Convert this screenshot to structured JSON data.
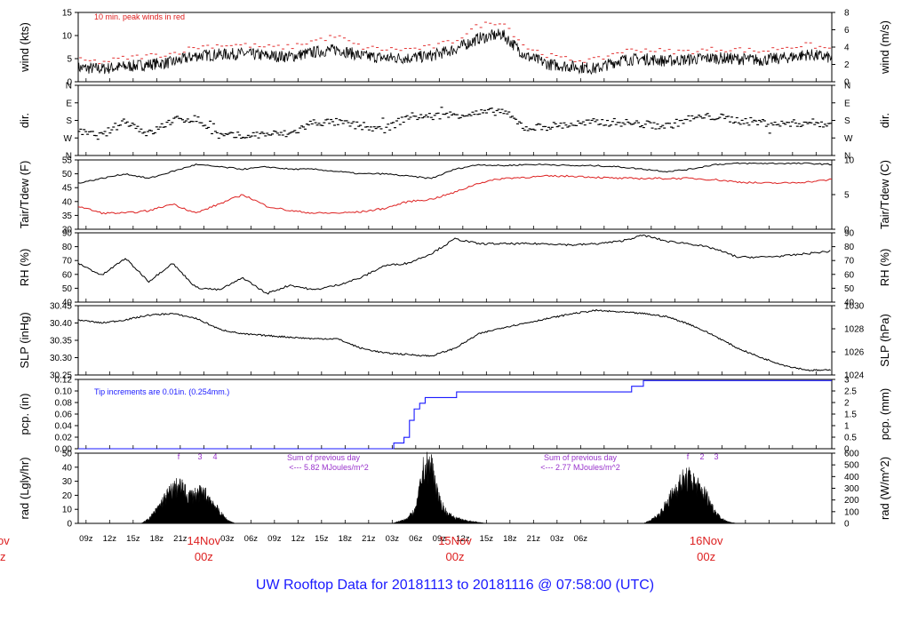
{
  "title": "UW Rooftop Data for 20181113  to  20181116 @ 07:58:00  (UTC)",
  "colors": {
    "black": "#000000",
    "red": "#dd2020",
    "blue": "#1a1aff",
    "purple": "#9933cc",
    "peaks": "#e23030"
  },
  "time_axis": {
    "hour_ticks": [
      "09z",
      "12z",
      "15z",
      "18z",
      "21z",
      "03z",
      "06z",
      "09z",
      "12z",
      "15z",
      "18z",
      "21z",
      "03z",
      "06z",
      "09z",
      "12z",
      "15z",
      "18z",
      "21z",
      "03z",
      "06z"
    ],
    "date_labels": [
      {
        "date": "14Nov",
        "hour": "00z"
      },
      {
        "date": "15Nov",
        "hour": "00z"
      },
      {
        "date": "16Nov",
        "hour": "00z"
      }
    ],
    "left_cut": {
      "date": "ov",
      "hour": "z"
    }
  },
  "chart_data": [
    {
      "type": "line",
      "panel": "wind",
      "ylabel_left": "wind (kts)",
      "ylabel_right": "wind (m/s)",
      "yticks_left": [
        "0",
        "5",
        "10",
        "15"
      ],
      "yticks_right": [
        "0",
        "2",
        "4",
        "6",
        "8"
      ],
      "ylim": [
        0,
        16
      ],
      "annotation": "10 min. peak winds in red",
      "series_desc": "sustained winds (black) with 10-min peaks (red dashes)",
      "x_hours": [
        0,
        3,
        6,
        9,
        12,
        15,
        18,
        21,
        24,
        27,
        30,
        33,
        36,
        39,
        42,
        45,
        48,
        51,
        54,
        57,
        60,
        63,
        66,
        69,
        72,
        75,
        78,
        81,
        84,
        87,
        90,
        93,
        96
      ],
      "values": [
        3.2,
        3,
        3.5,
        4,
        4.5,
        6,
        6.3,
        6.5,
        6,
        5.8,
        6.8,
        7.5,
        6,
        5.5,
        5.5,
        6,
        7.5,
        10,
        11,
        6,
        4,
        3.5,
        3,
        5,
        5.3,
        4.8,
        5.2,
        5.5,
        5.3,
        5,
        5.5,
        6.3,
        5.5
      ],
      "peaks": [
        5,
        4.5,
        5.5,
        6,
        6.5,
        8,
        8.5,
        8.5,
        8,
        8,
        9.5,
        10.5,
        8,
        7.5,
        7.5,
        8,
        9.5,
        13,
        14,
        8,
        6,
        5,
        5,
        7,
        7.5,
        7,
        7,
        7.5,
        7.5,
        7,
        8,
        8.5,
        7.5
      ]
    },
    {
      "type": "scatter",
      "panel": "dir",
      "ylabel_left": "dir.",
      "ylabel_right": "dir.",
      "yticks_left": [
        "N",
        "W",
        "S",
        "E",
        "N"
      ],
      "yticks_right": [
        "N",
        "W",
        "S",
        "E",
        "N"
      ],
      "ylim": [
        0,
        360
      ],
      "x_hours": [
        0,
        3,
        6,
        9,
        12,
        15,
        18,
        21,
        24,
        27,
        30,
        33,
        36,
        39,
        42,
        45,
        48,
        51,
        54,
        57,
        60,
        63,
        66,
        69,
        72,
        75,
        78,
        81,
        84,
        87,
        90,
        93,
        96
      ],
      "values": [
        120,
        100,
        180,
        110,
        180,
        190,
        100,
        100,
        110,
        110,
        170,
        170,
        150,
        130,
        200,
        200,
        210,
        215,
        230,
        140,
        150,
        160,
        170,
        170,
        160,
        150,
        190,
        200,
        180,
        170,
        160,
        170,
        160
      ]
    },
    {
      "type": "line",
      "panel": "temp",
      "ylabel_left": "Tair/Tdew (F)",
      "ylabel_right": "Tair/Tdew (C)",
      "yticks_left": [
        "30",
        "35",
        "40",
        "45",
        "50",
        "55"
      ],
      "yticks_right": [
        "0",
        "5",
        "10"
      ],
      "ylim": [
        26,
        56
      ],
      "x_hours": [
        0,
        3,
        6,
        9,
        12,
        15,
        18,
        21,
        24,
        27,
        30,
        33,
        36,
        39,
        42,
        45,
        48,
        51,
        54,
        57,
        60,
        63,
        66,
        69,
        72,
        75,
        78,
        81,
        84,
        87,
        90,
        93,
        96
      ],
      "series": [
        {
          "values": [
            46,
            48,
            50,
            48,
            51,
            54,
            53,
            52,
            53,
            52,
            52,
            51,
            50,
            50,
            49,
            48,
            52,
            54,
            53.5,
            54,
            54,
            53.5,
            53.5,
            53,
            52,
            51,
            52,
            54,
            54.5,
            54.5,
            54.5,
            54.5,
            54
          ]
        },
        {
          "values": [
            36,
            33,
            33,
            34,
            37,
            33,
            37,
            41,
            36,
            34,
            33,
            33,
            33.5,
            35,
            38,
            39,
            42,
            46,
            48,
            48.5,
            49,
            49,
            48.5,
            48,
            48,
            48,
            48,
            47.5,
            46.5,
            46,
            46,
            46.5,
            47.5
          ]
        }
      ]
    },
    {
      "type": "line",
      "panel": "rh",
      "ylabel_left": "RH (%)",
      "ylabel_right": "RH (%)",
      "yticks_left": [
        "40",
        "50",
        "60",
        "70",
        "80",
        "90"
      ],
      "yticks_right": [
        "40",
        "50",
        "60",
        "70",
        "80",
        "90"
      ],
      "ylim": [
        38,
        95
      ],
      "x_hours": [
        0,
        3,
        6,
        9,
        12,
        15,
        18,
        21,
        24,
        27,
        30,
        33,
        36,
        39,
        42,
        45,
        48,
        51,
        54,
        57,
        60,
        63,
        66,
        69,
        72,
        75,
        78,
        81,
        84,
        87,
        90,
        93,
        96
      ],
      "values": [
        70,
        60,
        74,
        55,
        70,
        50,
        48,
        58,
        45,
        52,
        48,
        52,
        58,
        68,
        70,
        78,
        90,
        86,
        86,
        86,
        86,
        85,
        86,
        88,
        93,
        88,
        86,
        82,
        75,
        75,
        76,
        78,
        80
      ]
    },
    {
      "type": "line",
      "panel": "slp",
      "ylabel_left": "SLP (inHg)",
      "ylabel_right": "SLP (hPa)",
      "yticks_left": [
        "30.25",
        "30.30",
        "30.35",
        "30.40",
        "30.45"
      ],
      "yticks_right": [
        "1024",
        "1026",
        "1028",
        "1030"
      ],
      "ylim": [
        30.235,
        30.455
      ],
      "x_hours": [
        0,
        3,
        6,
        9,
        12,
        15,
        18,
        21,
        24,
        27,
        30,
        33,
        36,
        39,
        42,
        45,
        48,
        51,
        54,
        57,
        60,
        63,
        66,
        69,
        72,
        75,
        78,
        81,
        84,
        87,
        90,
        93,
        96
      ],
      "values": [
        30.41,
        30.4,
        30.41,
        30.425,
        30.43,
        30.415,
        30.38,
        30.365,
        30.36,
        30.355,
        30.35,
        30.35,
        30.32,
        30.305,
        30.3,
        30.295,
        30.32,
        30.365,
        30.385,
        30.4,
        30.415,
        30.43,
        30.44,
        30.435,
        30.43,
        30.42,
        30.395,
        30.36,
        30.32,
        30.29,
        30.265,
        30.25,
        30.25
      ]
    },
    {
      "type": "line",
      "panel": "pcp",
      "ylabel_left": "pcp. (in)",
      "ylabel_right": "pcp. (mm)",
      "yticks_left": [
        "0.00",
        "0.02",
        "0.04",
        "0.06",
        "0.08",
        "0.10",
        "0.12"
      ],
      "yticks_right": [
        "0",
        "0.5",
        "1",
        "1.5",
        "2",
        "2.5",
        "3"
      ],
      "ylim": [
        0,
        0.122
      ],
      "annotation": "Tip increments are 0.01in. (0.254mm.)",
      "x_hours": [
        0,
        39.5,
        40.2,
        41.5,
        42.2,
        42.8,
        43.5,
        44.2,
        47,
        48.2,
        52,
        64,
        70,
        70.5,
        72,
        96
      ],
      "values": [
        0,
        0,
        0.01,
        0.02,
        0.05,
        0.07,
        0.08,
        0.09,
        0.09,
        0.1,
        0.1,
        0.1,
        0.1,
        0.11,
        0.12,
        0.12
      ]
    },
    {
      "type": "area",
      "panel": "rad",
      "ylabel_left": "rad (Lgly/hr)",
      "ylabel_right": "rad (W/m^2)",
      "yticks_left": [
        "0",
        "10",
        "20",
        "30",
        "40",
        "50"
      ],
      "yticks_right": [
        "0",
        "100",
        "200",
        "300",
        "400",
        "500",
        "600"
      ],
      "ylim": [
        0,
        51
      ],
      "annotations": [
        {
          "text": "Sum of previous day",
          "sub": "<--- 5.82 MJoules/m^2"
        },
        {
          "text": "Sum of previous day",
          "sub": "<--- 2.77 MJoules/m^2"
        }
      ],
      "markers": [
        "f",
        "3",
        "4",
        "f",
        "2",
        "3"
      ],
      "days": [
        {
          "x_hours": [
            8,
            9,
            10,
            11,
            12,
            13,
            14,
            15,
            16,
            17,
            18,
            19,
            20
          ],
          "values": [
            0,
            4,
            12,
            22,
            30,
            33,
            24,
            26,
            27,
            20,
            10,
            3,
            0
          ]
        },
        {
          "x_hours": [
            40,
            41,
            42,
            43,
            44,
            45,
            46,
            47,
            48,
            49,
            50,
            51,
            52
          ],
          "values": [
            0,
            2,
            5,
            12,
            48,
            52,
            20,
            9,
            5,
            3,
            2,
            1,
            0
          ]
        },
        {
          "x_hours": [
            72,
            73,
            74,
            75,
            76,
            77,
            78,
            79,
            80,
            81,
            82,
            83,
            84
          ],
          "values": [
            0,
            3,
            8,
            18,
            30,
            38,
            40,
            32,
            25,
            12,
            4,
            1,
            0
          ]
        }
      ]
    }
  ]
}
